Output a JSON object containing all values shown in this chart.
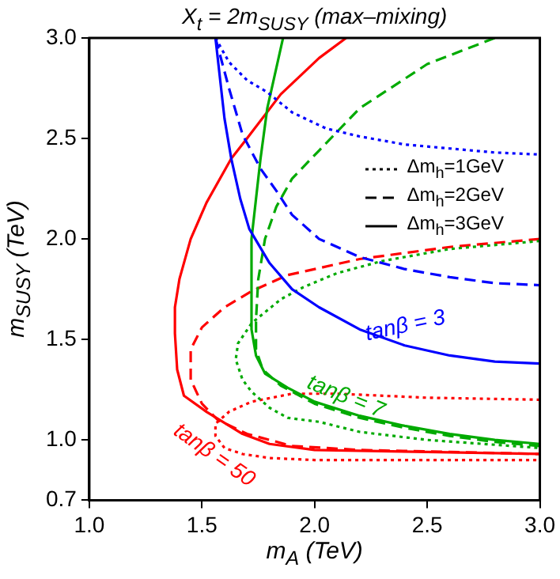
{
  "chart_data": {
    "type": "line",
    "title": "X$_{t}$ = 2m$_{SUSY}$ (max–mixing)",
    "xlabel": "m$_{A}$ (TeV)",
    "ylabel": "m$_{SUSY}$ (TeV)",
    "xlim": [
      1,
      3
    ],
    "xticks": [
      {
        "value": 1,
        "label": "1.0"
      },
      {
        "value": 1.5,
        "label": "1.5"
      },
      {
        "value": 2,
        "label": "2.0"
      },
      {
        "value": 2.5,
        "label": "2.5"
      },
      {
        "value": 3,
        "label": "3.0"
      }
    ],
    "ylim": [
      0.7,
      3
    ],
    "yticks": [
      0.7,
      {
        "value": 1,
        "label": "1.0"
      },
      {
        "value": 1.5,
        "label": "1.5"
      },
      {
        "value": 2,
        "label": "2.0"
      },
      {
        "value": 2.5,
        "label": "2.5"
      },
      {
        "value": 3,
        "label": "3.0"
      }
    ],
    "grid": false,
    "legend": false,
    "marker": "none",
    "series": [
      {
        "color": "#0000ff",
        "line_style": "dotted",
        "x": [
          1.56,
          1.62,
          1.7,
          1.79,
          1.9,
          2.05,
          2.2,
          2.4,
          2.6,
          2.8,
          3.0
        ],
        "values": [
          3.0,
          2.88,
          2.79,
          2.73,
          2.63,
          2.55,
          2.51,
          2.47,
          2.45,
          2.43,
          2.42
        ]
      },
      {
        "color": "#0000ff",
        "line_style": "dashed",
        "x": [
          1.56,
          1.62,
          1.68,
          1.76,
          1.83,
          1.9,
          2.02,
          2.2,
          2.4,
          2.6,
          2.8,
          3.0
        ],
        "values": [
          3.0,
          2.75,
          2.52,
          2.35,
          2.24,
          2.12,
          2.0,
          1.91,
          1.85,
          1.81,
          1.78,
          1.77
        ]
      },
      {
        "color": "#0000ff",
        "line_style": "solid",
        "x": [
          1.56,
          1.6,
          1.63,
          1.67,
          1.71,
          1.8,
          1.9,
          2.02,
          2.2,
          2.4,
          2.6,
          2.8,
          3.0
        ],
        "values": [
          3.0,
          2.6,
          2.4,
          2.2,
          2.05,
          1.88,
          1.75,
          1.66,
          1.55,
          1.47,
          1.42,
          1.39,
          1.38
        ]
      },
      {
        "color": "#00aa00",
        "line_style": "dotted",
        "x": [
          3.0,
          2.6,
          2.3,
          2.1,
          1.95,
          1.85,
          1.72,
          1.66,
          1.65,
          1.68,
          1.72,
          1.8,
          1.88,
          2.02,
          2.2,
          2.5,
          3.0
        ],
        "values": [
          1.99,
          1.95,
          1.89,
          1.83,
          1.76,
          1.7,
          1.58,
          1.48,
          1.4,
          1.3,
          1.24,
          1.16,
          1.11,
          1.09,
          1.04,
          1.0,
          0.96
        ]
      },
      {
        "color": "#00aa00",
        "line_style": "dashed",
        "x": [
          2.8,
          2.5,
          2.2,
          2.02,
          1.9,
          1.83,
          1.78,
          1.75,
          1.74,
          1.74,
          1.77,
          1.85,
          2.0,
          2.2,
          2.4,
          2.6,
          2.8,
          3.0
        ],
        "values": [
          3.0,
          2.87,
          2.65,
          2.44,
          2.3,
          2.16,
          2.0,
          1.8,
          1.6,
          1.45,
          1.35,
          1.27,
          1.18,
          1.11,
          1.06,
          1.02,
          0.99,
          0.97
        ]
      },
      {
        "color": "#00aa00",
        "line_style": "solid",
        "x": [
          1.86,
          1.82,
          1.79,
          1.76,
          1.74,
          1.72,
          1.72,
          1.74,
          1.78,
          1.88,
          2.0,
          2.2,
          2.4,
          2.6,
          2.8,
          3.0
        ],
        "values": [
          3.0,
          2.8,
          2.65,
          2.4,
          2.2,
          2.0,
          1.55,
          1.42,
          1.33,
          1.26,
          1.19,
          1.12,
          1.07,
          1.03,
          1.0,
          0.98
        ]
      },
      {
        "color": "#ff0000",
        "line_style": "dotted",
        "x": [
          3.0,
          2.5,
          2.1,
          1.9,
          1.72,
          1.62,
          1.56,
          1.56,
          1.6,
          1.68,
          1.8,
          2.0,
          2.5,
          3.0
        ],
        "values": [
          1.2,
          1.21,
          1.23,
          1.23,
          1.19,
          1.14,
          1.08,
          1.02,
          0.96,
          0.93,
          0.91,
          0.9,
          0.9,
          0.9
        ]
      },
      {
        "color": "#ff0000",
        "line_style": "dashed",
        "x": [
          3.0,
          2.6,
          2.2,
          1.88,
          1.72,
          1.6,
          1.5,
          1.45,
          1.45,
          1.5,
          1.57,
          1.7,
          1.9,
          2.2,
          2.6,
          3.0
        ],
        "values": [
          2.0,
          1.96,
          1.9,
          1.82,
          1.74,
          1.66,
          1.56,
          1.45,
          1.3,
          1.18,
          1.1,
          1.03,
          0.97,
          0.95,
          0.94,
          0.93
        ]
      },
      {
        "color": "#ff0000",
        "line_style": "solid",
        "x": [
          2.14,
          2.02,
          1.85,
          1.7,
          1.63,
          1.52,
          1.45,
          1.4,
          1.38,
          1.38,
          1.39,
          1.42,
          1.52,
          1.68,
          1.8,
          2.0,
          2.5,
          3.0
        ],
        "values": [
          3.0,
          2.9,
          2.72,
          2.5,
          2.4,
          2.18,
          2.0,
          1.8,
          1.66,
          1.53,
          1.35,
          1.22,
          1.14,
          1.03,
          0.98,
          0.95,
          0.94,
          0.93
        ]
      }
    ],
    "annotations": [
      "Δm$_{h}$=1GeV",
      "Δm$_{h}$=2GeV",
      "Δm$_{h}$=3GeV",
      {
        "text": "tanβ = 3",
        "x": 2.4,
        "y": 1.47
      },
      {
        "text": "tanβ = 7",
        "x": 2.14,
        "y": 1.22
      },
      {
        "text": "tanβ = 50",
        "x": 1.68,
        "y": 0.93
      }
    ]
  }
}
